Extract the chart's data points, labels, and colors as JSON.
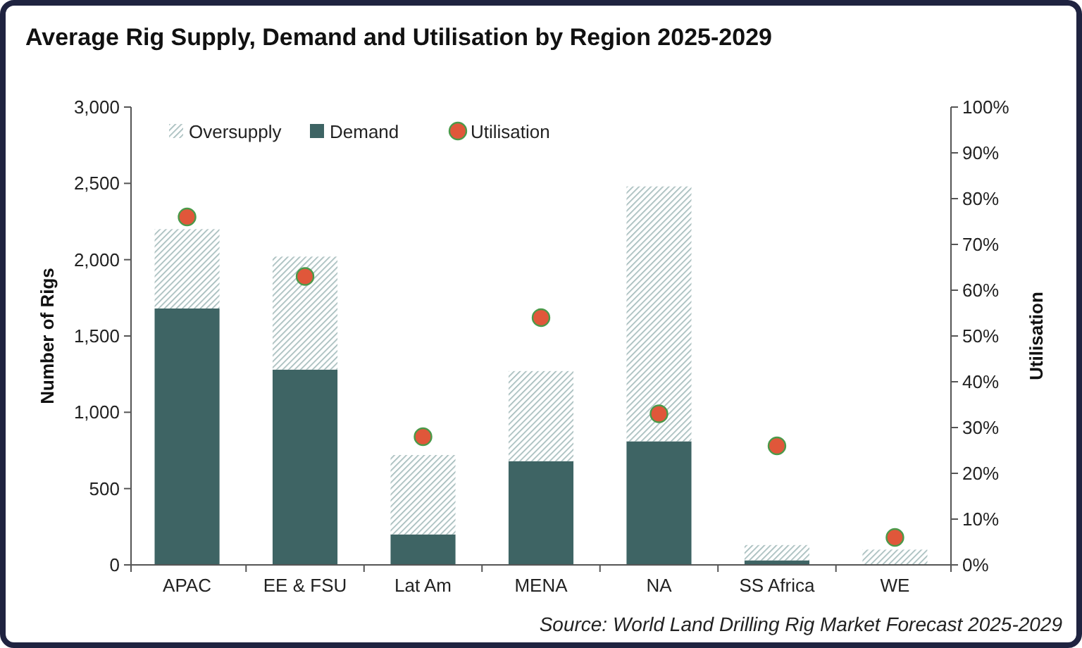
{
  "chart_data": {
    "type": "bar",
    "title": "Average Rig Supply, Demand and Utilisation by Region 2025-2029",
    "ylabel": "Number of Rigs",
    "y2label": "Utilisation",
    "categories": [
      "APAC",
      "EE & FSU",
      "Lat Am",
      "MENA",
      "NA",
      "SS Africa",
      "WE"
    ],
    "stacked": true,
    "series": [
      {
        "name": "Demand",
        "color": "#3e6464",
        "values": [
          1680,
          1280,
          200,
          680,
          810,
          30,
          null
        ]
      },
      {
        "name": "Oversupply",
        "color": "#9fb8b8",
        "values": [
          520,
          740,
          520,
          590,
          1670,
          100,
          100
        ]
      },
      {
        "name": "Utilisation",
        "type": "scatter",
        "axis": "y2",
        "color": "#e0573a",
        "values": [
          76,
          63,
          28,
          54,
          33,
          26,
          6
        ]
      }
    ],
    "ylim": [
      0,
      3000
    ],
    "yticks": [
      {
        "value": 0,
        "label": "0"
      },
      {
        "value": 500,
        "label": "500"
      },
      {
        "value": 1000,
        "label": "1,000"
      },
      {
        "value": 1500,
        "label": "1,500"
      },
      {
        "value": 2000,
        "label": "2,000"
      },
      {
        "value": 2500,
        "label": "2,500"
      },
      {
        "value": 3000,
        "label": "3,000"
      }
    ],
    "y2lim": [
      0,
      100
    ],
    "y2ticks": [
      {
        "value": 0,
        "label": "0%"
      },
      {
        "value": 10,
        "label": "10%"
      },
      {
        "value": 20,
        "label": "20%"
      },
      {
        "value": 30,
        "label": "30%"
      },
      {
        "value": 40,
        "label": "40%"
      },
      {
        "value": 50,
        "label": "50%"
      },
      {
        "value": 60,
        "label": "60%"
      },
      {
        "value": 70,
        "label": "70%"
      },
      {
        "value": 80,
        "label": "80%"
      },
      {
        "value": 90,
        "label": "90%"
      },
      {
        "value": 100,
        "label": "100%"
      }
    ],
    "legend": "top",
    "marker": "circle",
    "annotations": [
      "Source: World Land Drilling Rig Market Forecast 2025-2029"
    ]
  }
}
